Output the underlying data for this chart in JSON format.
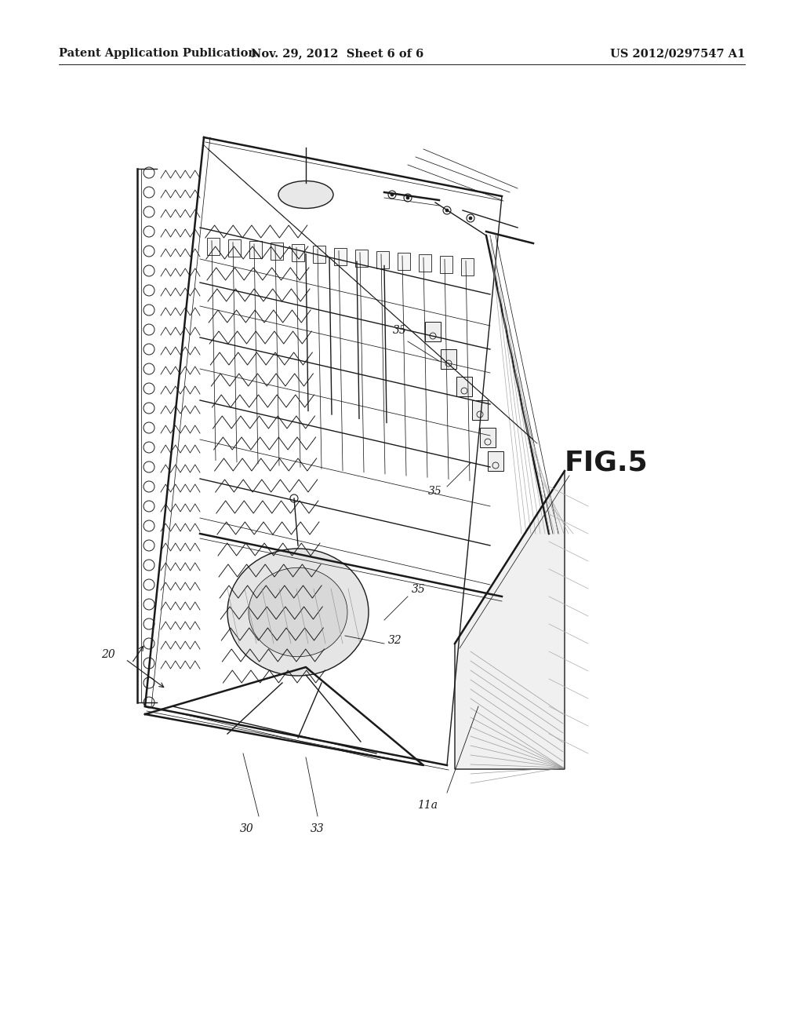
{
  "background_color": "#ffffff",
  "header_left": "Patent Application Publication",
  "header_center": "Nov. 29, 2012  Sheet 6 of 6",
  "header_right": "US 2012/0297547 A1",
  "fig_label": "FIG.5",
  "header_fontsize": 10.5,
  "fig_fontsize": 26,
  "ref_fontsize": 10,
  "color": "#1a1a1a",
  "lw_main": 1.0,
  "lw_thin": 0.55,
  "lw_thick": 1.8
}
